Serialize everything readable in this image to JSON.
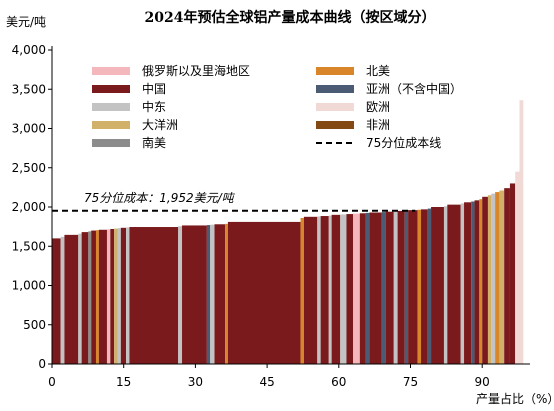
{
  "chart_data": {
    "type": "bar",
    "title": "2024年预估全球铝产量成本曲线（按区域分）",
    "ylabel": "美元/吨",
    "xlabel": "产量占比（%）",
    "ylim": [
      0,
      4000
    ],
    "xlim": [
      0,
      100
    ],
    "yticks": [
      "0",
      "500",
      "1,000",
      "1,500",
      "2,000",
      "2,500",
      "3,000",
      "3,500",
      "4,000"
    ],
    "yticks_values": [
      0,
      500,
      1000,
      1500,
      2000,
      2500,
      3000,
      3500,
      4000
    ],
    "xticks": [
      "0",
      "15",
      "30",
      "45",
      "60",
      "75",
      "90"
    ],
    "xticks_values": [
      0,
      15,
      30,
      45,
      60,
      75,
      90
    ],
    "annotation": "75分位成本：1,952美元/吨",
    "p75_cost": 1952,
    "legend_placement": "top-left, two columns",
    "regions": [
      {
        "key": "russia",
        "name": "俄罗斯以及里海地区",
        "color": "#f4b7bc"
      },
      {
        "key": "north_america",
        "name": "北美",
        "color": "#d9862a"
      },
      {
        "key": "china",
        "name": "中国",
        "color": "#7b1a1c"
      },
      {
        "key": "asia_ex_china",
        "name": "亚洲（不含中国）",
        "color": "#4a5b73"
      },
      {
        "key": "middle_east",
        "name": "中东",
        "color": "#c3c3c3"
      },
      {
        "key": "europe",
        "name": "欧洲",
        "color": "#f1d9d5"
      },
      {
        "key": "oceania",
        "name": "大洋洲",
        "color": "#d1b06a"
      },
      {
        "key": "africa",
        "name": "非洲",
        "color": "#844a13"
      },
      {
        "key": "south_america",
        "name": "南美",
        "color": "#8c8c8c"
      }
    ],
    "p75_line_label": "75分位成本线",
    "segments": [
      {
        "x0": 0.0,
        "x1": 1.8,
        "region": "china",
        "value": 1600
      },
      {
        "x0": 1.8,
        "x1": 2.6,
        "region": "middle_east",
        "value": 1620
      },
      {
        "x0": 2.6,
        "x1": 5.5,
        "region": "china",
        "value": 1645
      },
      {
        "x0": 5.5,
        "x1": 6.2,
        "region": "middle_east",
        "value": 1660
      },
      {
        "x0": 6.2,
        "x1": 7.6,
        "region": "china",
        "value": 1680
      },
      {
        "x0": 7.6,
        "x1": 8.2,
        "region": "south_america",
        "value": 1690
      },
      {
        "x0": 8.2,
        "x1": 9.2,
        "region": "china",
        "value": 1700
      },
      {
        "x0": 9.2,
        "x1": 9.8,
        "region": "north_america",
        "value": 1705
      },
      {
        "x0": 9.8,
        "x1": 11.5,
        "region": "china",
        "value": 1710
      },
      {
        "x0": 11.5,
        "x1": 12.2,
        "region": "russia",
        "value": 1715
      },
      {
        "x0": 12.2,
        "x1": 13.0,
        "region": "china",
        "value": 1720
      },
      {
        "x0": 13.0,
        "x1": 13.7,
        "region": "oceania",
        "value": 1725
      },
      {
        "x0": 13.7,
        "x1": 14.4,
        "region": "middle_east",
        "value": 1730
      },
      {
        "x0": 14.4,
        "x1": 15.5,
        "region": "china",
        "value": 1735
      },
      {
        "x0": 15.5,
        "x1": 16.2,
        "region": "middle_east",
        "value": 1740
      },
      {
        "x0": 16.2,
        "x1": 26.4,
        "region": "china",
        "value": 1745
      },
      {
        "x0": 26.4,
        "x1": 27.2,
        "region": "middle_east",
        "value": 1755
      },
      {
        "x0": 27.2,
        "x1": 32.4,
        "region": "china",
        "value": 1765
      },
      {
        "x0": 32.4,
        "x1": 33.1,
        "region": "asia_ex_china",
        "value": 1770
      },
      {
        "x0": 33.1,
        "x1": 34.0,
        "region": "middle_east",
        "value": 1775
      },
      {
        "x0": 34.0,
        "x1": 36.2,
        "region": "china",
        "value": 1780
      },
      {
        "x0": 36.2,
        "x1": 36.8,
        "region": "north_america",
        "value": 1785
      },
      {
        "x0": 36.8,
        "x1": 52.0,
        "region": "china",
        "value": 1810
      },
      {
        "x0": 52.0,
        "x1": 52.7,
        "region": "north_america",
        "value": 1860
      },
      {
        "x0": 52.7,
        "x1": 55.5,
        "region": "china",
        "value": 1875
      },
      {
        "x0": 55.5,
        "x1": 56.2,
        "region": "middle_east",
        "value": 1880
      },
      {
        "x0": 56.2,
        "x1": 57.9,
        "region": "china",
        "value": 1885
      },
      {
        "x0": 57.9,
        "x1": 58.5,
        "region": "middle_east",
        "value": 1890
      },
      {
        "x0": 58.5,
        "x1": 60.3,
        "region": "china",
        "value": 1900
      },
      {
        "x0": 60.3,
        "x1": 61.6,
        "region": "middle_east",
        "value": 1905
      },
      {
        "x0": 61.6,
        "x1": 63.0,
        "region": "china",
        "value": 1910
      },
      {
        "x0": 63.0,
        "x1": 64.4,
        "region": "russia",
        "value": 1915
      },
      {
        "x0": 64.4,
        "x1": 65.6,
        "region": "china",
        "value": 1920
      },
      {
        "x0": 65.6,
        "x1": 66.4,
        "region": "asia_ex_china",
        "value": 1925
      },
      {
        "x0": 66.4,
        "x1": 69.0,
        "region": "china",
        "value": 1930
      },
      {
        "x0": 69.0,
        "x1": 69.8,
        "region": "asia_ex_china",
        "value": 1935
      },
      {
        "x0": 69.8,
        "x1": 71.5,
        "region": "china",
        "value": 1940
      },
      {
        "x0": 71.5,
        "x1": 72.3,
        "region": "middle_east",
        "value": 1945
      },
      {
        "x0": 72.3,
        "x1": 73.8,
        "region": "china",
        "value": 1950
      },
      {
        "x0": 73.8,
        "x1": 74.5,
        "region": "asia_ex_china",
        "value": 1955
      },
      {
        "x0": 74.5,
        "x1": 76.5,
        "region": "china",
        "value": 1960
      },
      {
        "x0": 76.5,
        "x1": 77.2,
        "region": "north_america",
        "value": 1965
      },
      {
        "x0": 77.2,
        "x1": 78.6,
        "region": "china",
        "value": 1970
      },
      {
        "x0": 78.6,
        "x1": 79.3,
        "region": "asia_ex_china",
        "value": 1980
      },
      {
        "x0": 79.3,
        "x1": 82.0,
        "region": "china",
        "value": 2000
      },
      {
        "x0": 82.0,
        "x1": 82.7,
        "region": "middle_east",
        "value": 2010
      },
      {
        "x0": 82.7,
        "x1": 85.5,
        "region": "china",
        "value": 2030
      },
      {
        "x0": 85.5,
        "x1": 86.2,
        "region": "middle_east",
        "value": 2045
      },
      {
        "x0": 86.2,
        "x1": 87.7,
        "region": "china",
        "value": 2060
      },
      {
        "x0": 87.7,
        "x1": 88.4,
        "region": "asia_ex_china",
        "value": 2070
      },
      {
        "x0": 88.4,
        "x1": 89.4,
        "region": "china",
        "value": 2085
      },
      {
        "x0": 89.4,
        "x1": 90.0,
        "region": "north_america",
        "value": 2100
      },
      {
        "x0": 90.0,
        "x1": 91.2,
        "region": "china",
        "value": 2130
      },
      {
        "x0": 91.2,
        "x1": 91.9,
        "region": "oceania",
        "value": 2150
      },
      {
        "x0": 91.9,
        "x1": 92.7,
        "region": "middle_east",
        "value": 2170
      },
      {
        "x0": 92.7,
        "x1": 93.6,
        "region": "north_america",
        "value": 2190
      },
      {
        "x0": 93.6,
        "x1": 94.6,
        "region": "oceania",
        "value": 2210
      },
      {
        "x0": 94.6,
        "x1": 95.8,
        "region": "china",
        "value": 2240
      },
      {
        "x0": 95.8,
        "x1": 96.9,
        "region": "china",
        "value": 2300
      },
      {
        "x0": 96.9,
        "x1": 97.8,
        "region": "europe",
        "value": 2450
      },
      {
        "x0": 97.8,
        "x1": 98.6,
        "region": "europe",
        "value": 3360
      }
    ]
  }
}
